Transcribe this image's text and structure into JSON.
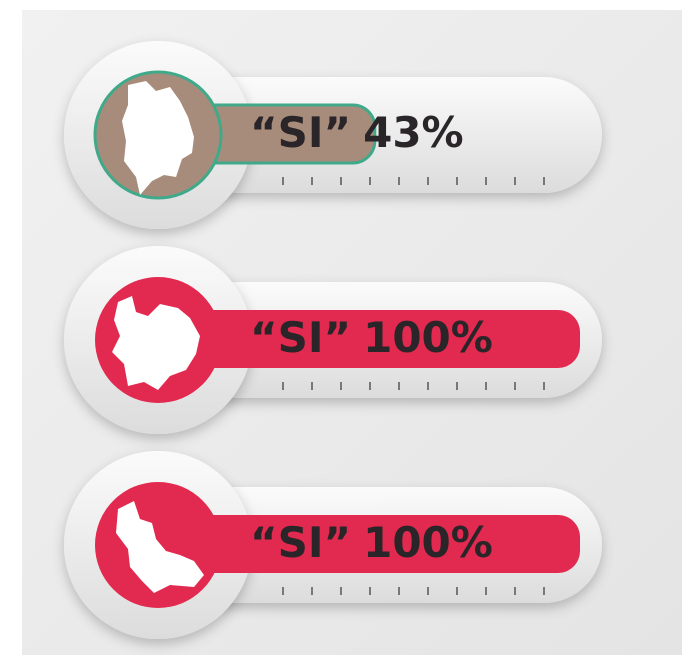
{
  "xlim": [
    0,
    100
  ],
  "gauges": [
    {
      "label": "“SI”",
      "value": 43,
      "value_label": "43%",
      "color": "#a88c7b",
      "outline": "#3fa98a"
    },
    {
      "label": "“SI”",
      "value": 100,
      "value_label": "100%",
      "color": "#e2294f"
    },
    {
      "label": "“SI”",
      "value": 100,
      "value_label": "100%",
      "color": "#e2294f"
    }
  ]
}
